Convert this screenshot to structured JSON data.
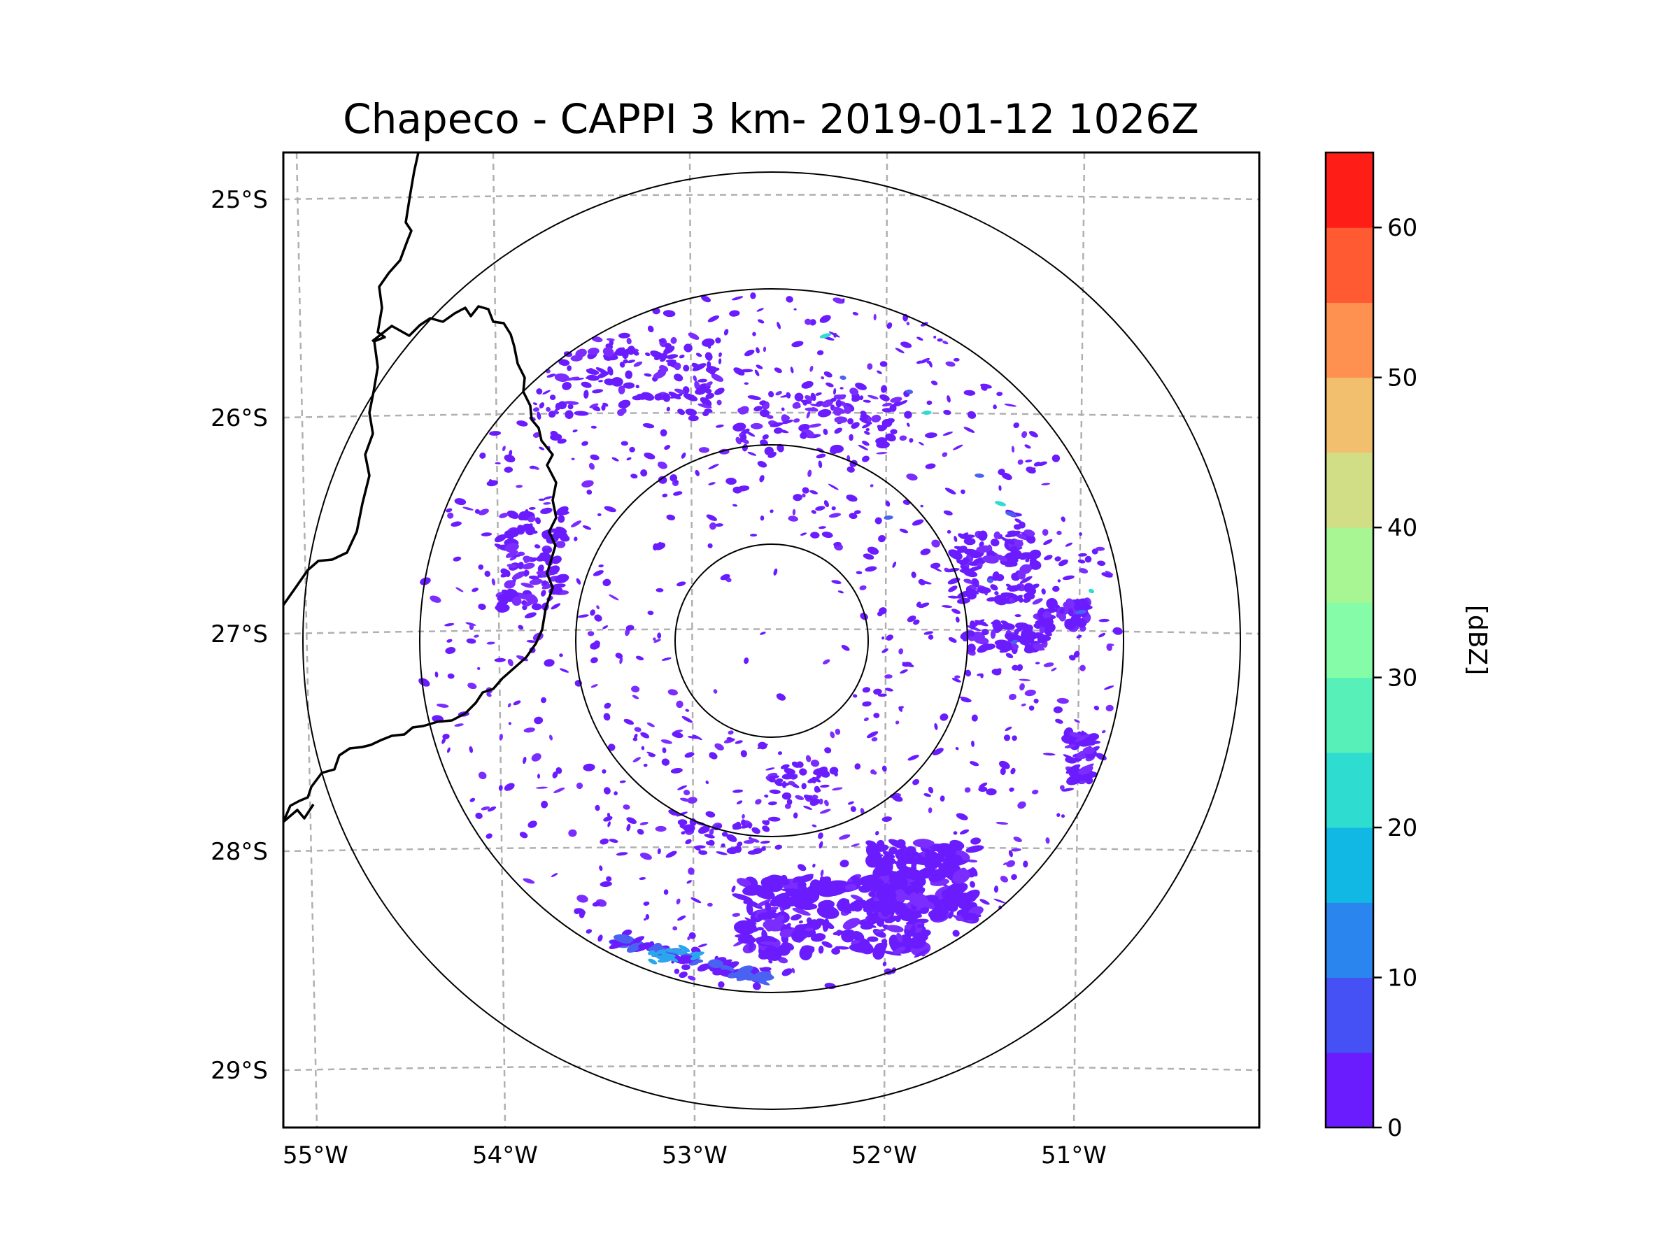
{
  "figure": {
    "title": "Chapeco - CAPPI 3 km- 2019-01-12 1026Z"
  },
  "map": {
    "lat_ticks": [
      "25°S",
      "26°S",
      "27°S",
      "28°S",
      "29°S"
    ],
    "lon_ticks": [
      "55°W",
      "54°W",
      "53°W",
      "52°W",
      "51°W"
    ],
    "range_rings_count": 4,
    "gridlines": "dashed",
    "borders": "black lines (western side)"
  },
  "colorbar": {
    "label": "[dBZ]",
    "tick_labels": [
      "0",
      "10",
      "20",
      "30",
      "40",
      "50",
      "60"
    ],
    "range": [
      0,
      65
    ],
    "step": 5,
    "colors": [
      "#6a1cff",
      "#4550f5",
      "#2a86ee",
      "#12b8e4",
      "#2fdcd0",
      "#56f0b8",
      "#84fca8",
      "#a8f594",
      "#d2de85",
      "#f2bf6e",
      "#ff9150",
      "#ff5a32",
      "#ff1e17"
    ]
  },
  "echo_colors": {
    "weak": "#6a1cff",
    "weak_alt": "#7b2cff",
    "moderate": "#4a62f2",
    "light_blue": "#2aa6ee",
    "cyan": "#2fdcd0"
  }
}
